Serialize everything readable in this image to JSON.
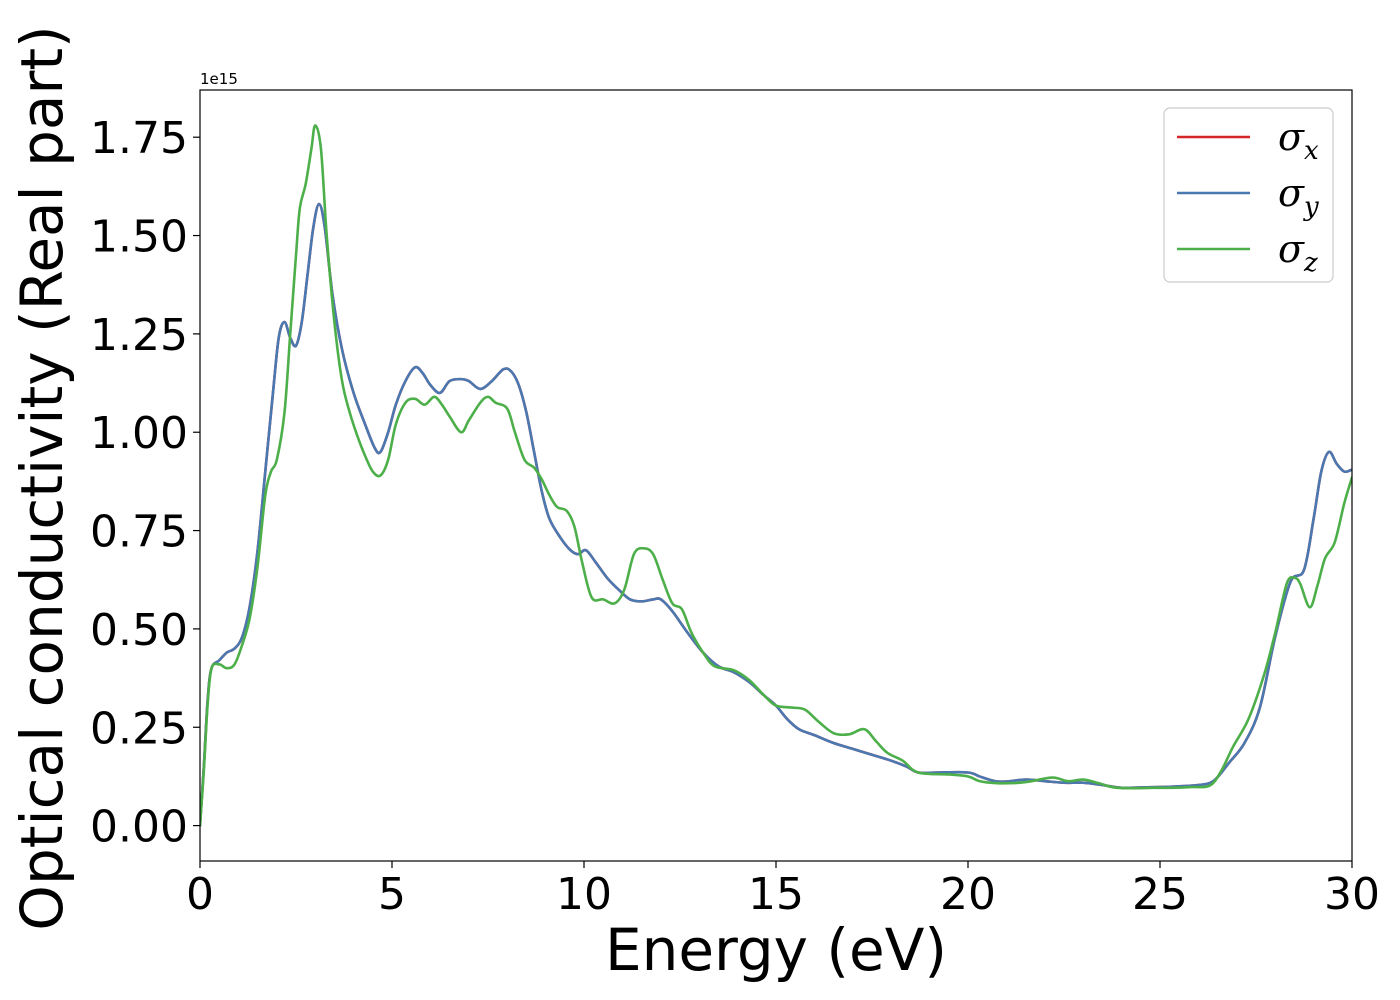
{
  "chart_data": {
    "type": "line",
    "xlabel": "Energy (eV)",
    "ylabel": "Optical conductivity (Real part)",
    "y_offset_label": "1e15",
    "xlim": [
      0,
      30
    ],
    "ylim": [
      -0.09,
      1.87
    ],
    "x_ticks": [
      0,
      5,
      10,
      15,
      20,
      25,
      30
    ],
    "x_tick_labels": [
      "0",
      "5",
      "10",
      "15",
      "20",
      "25",
      "30"
    ],
    "y_ticks": [
      0.0,
      0.25,
      0.5,
      0.75,
      1.0,
      1.25,
      1.5,
      1.75
    ],
    "y_tick_labels": [
      "0.00",
      "0.25",
      "0.50",
      "0.75",
      "1.00",
      "1.25",
      "1.50",
      "1.75"
    ],
    "grid": false,
    "legend_position": "top-right",
    "series": [
      {
        "name": "σ",
        "subscript": "x",
        "color": "#d62728",
        "points": [
          [
            0,
            0.0
          ],
          [
            0.1,
            0.15
          ],
          [
            0.2,
            0.32
          ],
          [
            0.3,
            0.4
          ],
          [
            0.5,
            0.42
          ],
          [
            0.7,
            0.44
          ],
          [
            0.9,
            0.45
          ],
          [
            1.1,
            0.48
          ],
          [
            1.3,
            0.56
          ],
          [
            1.5,
            0.7
          ],
          [
            1.7,
            0.9
          ],
          [
            1.9,
            1.1
          ],
          [
            2.05,
            1.24
          ],
          [
            2.2,
            1.28
          ],
          [
            2.35,
            1.24
          ],
          [
            2.5,
            1.22
          ],
          [
            2.65,
            1.28
          ],
          [
            2.8,
            1.4
          ],
          [
            2.95,
            1.52
          ],
          [
            3.1,
            1.58
          ],
          [
            3.25,
            1.52
          ],
          [
            3.45,
            1.35
          ],
          [
            3.7,
            1.21
          ],
          [
            4.0,
            1.1
          ],
          [
            4.3,
            1.02
          ],
          [
            4.55,
            0.96
          ],
          [
            4.7,
            0.95
          ],
          [
            4.9,
            1.0
          ],
          [
            5.1,
            1.07
          ],
          [
            5.35,
            1.13
          ],
          [
            5.6,
            1.165
          ],
          [
            5.8,
            1.15
          ],
          [
            6.0,
            1.12
          ],
          [
            6.25,
            1.1
          ],
          [
            6.5,
            1.13
          ],
          [
            6.8,
            1.135
          ],
          [
            7.0,
            1.13
          ],
          [
            7.3,
            1.11
          ],
          [
            7.6,
            1.13
          ],
          [
            7.9,
            1.16
          ],
          [
            8.1,
            1.155
          ],
          [
            8.3,
            1.12
          ],
          [
            8.5,
            1.05
          ],
          [
            8.7,
            0.95
          ],
          [
            8.9,
            0.85
          ],
          [
            9.1,
            0.78
          ],
          [
            9.4,
            0.73
          ],
          [
            9.65,
            0.7
          ],
          [
            9.85,
            0.69
          ],
          [
            10.05,
            0.7
          ],
          [
            10.3,
            0.67
          ],
          [
            10.6,
            0.63
          ],
          [
            10.9,
            0.6
          ],
          [
            11.2,
            0.575
          ],
          [
            11.5,
            0.57
          ],
          [
            11.8,
            0.575
          ],
          [
            12.0,
            0.575
          ],
          [
            12.3,
            0.545
          ],
          [
            12.7,
            0.49
          ],
          [
            13.1,
            0.44
          ],
          [
            13.5,
            0.405
          ],
          [
            13.9,
            0.39
          ],
          [
            14.3,
            0.365
          ],
          [
            14.7,
            0.33
          ],
          [
            15.0,
            0.305
          ],
          [
            15.3,
            0.27
          ],
          [
            15.6,
            0.245
          ],
          [
            16.0,
            0.23
          ],
          [
            16.5,
            0.21
          ],
          [
            17.0,
            0.195
          ],
          [
            17.5,
            0.18
          ],
          [
            18.0,
            0.165
          ],
          [
            18.4,
            0.15
          ],
          [
            18.7,
            0.135
          ],
          [
            19.2,
            0.135
          ],
          [
            20.0,
            0.135
          ],
          [
            20.3,
            0.125
          ],
          [
            20.7,
            0.113
          ],
          [
            21.0,
            0.112
          ],
          [
            21.5,
            0.117
          ],
          [
            22.0,
            0.113
          ],
          [
            22.5,
            0.109
          ],
          [
            23.0,
            0.109
          ],
          [
            23.5,
            0.103
          ],
          [
            24.0,
            0.096
          ],
          [
            24.5,
            0.097
          ],
          [
            25.0,
            0.098
          ],
          [
            25.5,
            0.1
          ],
          [
            26.0,
            0.103
          ],
          [
            26.4,
            0.114
          ],
          [
            26.8,
            0.16
          ],
          [
            27.2,
            0.21
          ],
          [
            27.6,
            0.3
          ],
          [
            28.0,
            0.48
          ],
          [
            28.4,
            0.62
          ],
          [
            28.75,
            0.65
          ],
          [
            29.0,
            0.78
          ],
          [
            29.2,
            0.9
          ],
          [
            29.4,
            0.95
          ],
          [
            29.6,
            0.92
          ],
          [
            29.8,
            0.9
          ],
          [
            30.0,
            0.905
          ]
        ]
      },
      {
        "name": "σ",
        "subscript": "y",
        "color": "#4a78b0",
        "points": [
          [
            0,
            0.0
          ],
          [
            0.1,
            0.15
          ],
          [
            0.2,
            0.32
          ],
          [
            0.3,
            0.4
          ],
          [
            0.5,
            0.42
          ],
          [
            0.7,
            0.44
          ],
          [
            0.9,
            0.45
          ],
          [
            1.1,
            0.48
          ],
          [
            1.3,
            0.56
          ],
          [
            1.5,
            0.7
          ],
          [
            1.7,
            0.9
          ],
          [
            1.9,
            1.1
          ],
          [
            2.05,
            1.24
          ],
          [
            2.2,
            1.28
          ],
          [
            2.35,
            1.24
          ],
          [
            2.5,
            1.22
          ],
          [
            2.65,
            1.28
          ],
          [
            2.8,
            1.4
          ],
          [
            2.95,
            1.52
          ],
          [
            3.1,
            1.58
          ],
          [
            3.25,
            1.52
          ],
          [
            3.45,
            1.35
          ],
          [
            3.7,
            1.21
          ],
          [
            4.0,
            1.1
          ],
          [
            4.3,
            1.02
          ],
          [
            4.55,
            0.96
          ],
          [
            4.7,
            0.95
          ],
          [
            4.9,
            1.0
          ],
          [
            5.1,
            1.07
          ],
          [
            5.35,
            1.13
          ],
          [
            5.6,
            1.165
          ],
          [
            5.8,
            1.15
          ],
          [
            6.0,
            1.12
          ],
          [
            6.25,
            1.1
          ],
          [
            6.5,
            1.13
          ],
          [
            6.8,
            1.135
          ],
          [
            7.0,
            1.13
          ],
          [
            7.3,
            1.11
          ],
          [
            7.6,
            1.13
          ],
          [
            7.9,
            1.16
          ],
          [
            8.1,
            1.155
          ],
          [
            8.3,
            1.12
          ],
          [
            8.5,
            1.05
          ],
          [
            8.7,
            0.95
          ],
          [
            8.9,
            0.85
          ],
          [
            9.1,
            0.78
          ],
          [
            9.4,
            0.73
          ],
          [
            9.65,
            0.7
          ],
          [
            9.85,
            0.69
          ],
          [
            10.05,
            0.7
          ],
          [
            10.3,
            0.67
          ],
          [
            10.6,
            0.63
          ],
          [
            10.9,
            0.6
          ],
          [
            11.2,
            0.575
          ],
          [
            11.5,
            0.57
          ],
          [
            11.8,
            0.575
          ],
          [
            12.0,
            0.575
          ],
          [
            12.3,
            0.545
          ],
          [
            12.7,
            0.49
          ],
          [
            13.1,
            0.44
          ],
          [
            13.5,
            0.405
          ],
          [
            13.9,
            0.39
          ],
          [
            14.3,
            0.365
          ],
          [
            14.7,
            0.33
          ],
          [
            15.0,
            0.305
          ],
          [
            15.3,
            0.27
          ],
          [
            15.6,
            0.245
          ],
          [
            16.0,
            0.23
          ],
          [
            16.5,
            0.21
          ],
          [
            17.0,
            0.195
          ],
          [
            17.5,
            0.18
          ],
          [
            18.0,
            0.165
          ],
          [
            18.4,
            0.15
          ],
          [
            18.7,
            0.135
          ],
          [
            19.2,
            0.135
          ],
          [
            20.0,
            0.135
          ],
          [
            20.3,
            0.125
          ],
          [
            20.7,
            0.113
          ],
          [
            21.0,
            0.112
          ],
          [
            21.5,
            0.117
          ],
          [
            22.0,
            0.113
          ],
          [
            22.5,
            0.109
          ],
          [
            23.0,
            0.109
          ],
          [
            23.5,
            0.103
          ],
          [
            24.0,
            0.096
          ],
          [
            24.5,
            0.097
          ],
          [
            25.0,
            0.098
          ],
          [
            25.5,
            0.1
          ],
          [
            26.0,
            0.103
          ],
          [
            26.4,
            0.114
          ],
          [
            26.8,
            0.16
          ],
          [
            27.2,
            0.21
          ],
          [
            27.6,
            0.3
          ],
          [
            28.0,
            0.48
          ],
          [
            28.4,
            0.62
          ],
          [
            28.75,
            0.65
          ],
          [
            29.0,
            0.78
          ],
          [
            29.2,
            0.9
          ],
          [
            29.4,
            0.95
          ],
          [
            29.6,
            0.92
          ],
          [
            29.8,
            0.9
          ],
          [
            30.0,
            0.905
          ]
        ]
      },
      {
        "name": "σ",
        "subscript": "z",
        "color": "#4daf4a",
        "points": [
          [
            0,
            0.0
          ],
          [
            0.1,
            0.14
          ],
          [
            0.2,
            0.31
          ],
          [
            0.3,
            0.4
          ],
          [
            0.5,
            0.41
          ],
          [
            0.7,
            0.4
          ],
          [
            0.9,
            0.41
          ],
          [
            1.1,
            0.46
          ],
          [
            1.3,
            0.53
          ],
          [
            1.5,
            0.66
          ],
          [
            1.7,
            0.84
          ],
          [
            1.85,
            0.9
          ],
          [
            2.0,
            0.93
          ],
          [
            2.2,
            1.05
          ],
          [
            2.35,
            1.25
          ],
          [
            2.5,
            1.45
          ],
          [
            2.6,
            1.57
          ],
          [
            2.75,
            1.63
          ],
          [
            2.9,
            1.72
          ],
          [
            3.0,
            1.78
          ],
          [
            3.15,
            1.72
          ],
          [
            3.3,
            1.5
          ],
          [
            3.5,
            1.28
          ],
          [
            3.7,
            1.13
          ],
          [
            3.9,
            1.05
          ],
          [
            4.1,
            0.99
          ],
          [
            4.3,
            0.94
          ],
          [
            4.5,
            0.9
          ],
          [
            4.7,
            0.89
          ],
          [
            4.9,
            0.93
          ],
          [
            5.1,
            1.02
          ],
          [
            5.35,
            1.075
          ],
          [
            5.6,
            1.085
          ],
          [
            5.85,
            1.07
          ],
          [
            6.1,
            1.09
          ],
          [
            6.3,
            1.07
          ],
          [
            6.5,
            1.04
          ],
          [
            6.8,
            1.0
          ],
          [
            7.0,
            1.03
          ],
          [
            7.3,
            1.075
          ],
          [
            7.5,
            1.09
          ],
          [
            7.7,
            1.075
          ],
          [
            8.0,
            1.06
          ],
          [
            8.2,
            1.0
          ],
          [
            8.45,
            0.93
          ],
          [
            8.7,
            0.91
          ],
          [
            8.9,
            0.88
          ],
          [
            9.1,
            0.84
          ],
          [
            9.3,
            0.81
          ],
          [
            9.55,
            0.8
          ],
          [
            9.75,
            0.76
          ],
          [
            9.95,
            0.67
          ],
          [
            10.2,
            0.58
          ],
          [
            10.5,
            0.575
          ],
          [
            10.8,
            0.565
          ],
          [
            11.05,
            0.6
          ],
          [
            11.3,
            0.69
          ],
          [
            11.55,
            0.705
          ],
          [
            11.8,
            0.69
          ],
          [
            12.05,
            0.625
          ],
          [
            12.3,
            0.565
          ],
          [
            12.55,
            0.55
          ],
          [
            12.8,
            0.49
          ],
          [
            13.1,
            0.44
          ],
          [
            13.4,
            0.405
          ],
          [
            13.9,
            0.395
          ],
          [
            14.3,
            0.37
          ],
          [
            14.7,
            0.33
          ],
          [
            15.0,
            0.305
          ],
          [
            15.4,
            0.3
          ],
          [
            15.75,
            0.295
          ],
          [
            16.1,
            0.265
          ],
          [
            16.5,
            0.235
          ],
          [
            16.9,
            0.232
          ],
          [
            17.3,
            0.245
          ],
          [
            17.6,
            0.215
          ],
          [
            17.9,
            0.185
          ],
          [
            18.3,
            0.165
          ],
          [
            18.7,
            0.135
          ],
          [
            19.5,
            0.13
          ],
          [
            20.0,
            0.125
          ],
          [
            20.3,
            0.113
          ],
          [
            20.7,
            0.108
          ],
          [
            21.2,
            0.108
          ],
          [
            21.6,
            0.112
          ],
          [
            22.2,
            0.122
          ],
          [
            22.6,
            0.113
          ],
          [
            23.0,
            0.117
          ],
          [
            23.4,
            0.108
          ],
          [
            23.8,
            0.097
          ],
          [
            24.3,
            0.095
          ],
          [
            24.8,
            0.096
          ],
          [
            25.3,
            0.096
          ],
          [
            25.8,
            0.098
          ],
          [
            26.3,
            0.102
          ],
          [
            26.6,
            0.14
          ],
          [
            26.9,
            0.2
          ],
          [
            27.3,
            0.27
          ],
          [
            27.7,
            0.38
          ],
          [
            28.0,
            0.49
          ],
          [
            28.3,
            0.615
          ],
          [
            28.5,
            0.63
          ],
          [
            28.65,
            0.615
          ],
          [
            28.9,
            0.555
          ],
          [
            29.1,
            0.61
          ],
          [
            29.3,
            0.68
          ],
          [
            29.55,
            0.72
          ],
          [
            29.8,
            0.82
          ],
          [
            30.0,
            0.885
          ]
        ]
      }
    ]
  }
}
